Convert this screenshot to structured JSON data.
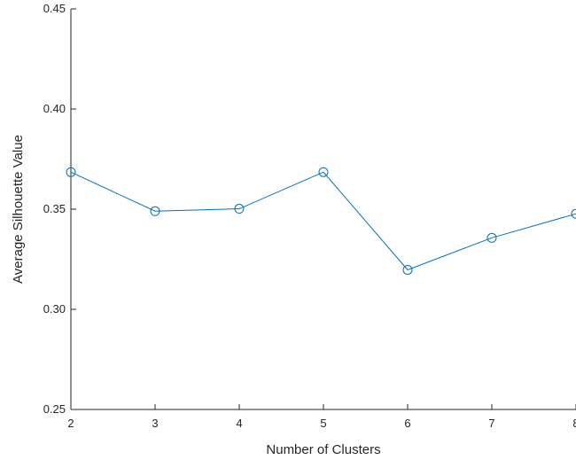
{
  "chart_data": {
    "type": "line",
    "title": "",
    "xlabel": "Number of Clusters",
    "ylabel": "Average Silhouette Value",
    "x": [
      2,
      3,
      4,
      5,
      6,
      7,
      8
    ],
    "series": [
      {
        "values": [
          0.3685,
          0.349,
          0.3502,
          0.3685,
          0.3197,
          0.3357,
          0.3477
        ],
        "color": "#0072BD",
        "marker": "circle"
      }
    ],
    "xlim": [
      2,
      8
    ],
    "ylim": [
      0.25,
      0.45
    ],
    "xticks": [
      2,
      3,
      4,
      5,
      6,
      7,
      8
    ],
    "xtick_labels": [
      "2",
      "3",
      "4",
      "5",
      "6",
      "7",
      "8"
    ],
    "yticks": [
      0.25,
      0.3,
      0.35,
      0.4,
      0.45
    ],
    "ytick_labels": [
      "0.25",
      "0.30",
      "0.35",
      "0.40",
      "0.45"
    ],
    "grid": false,
    "legend": "none"
  }
}
